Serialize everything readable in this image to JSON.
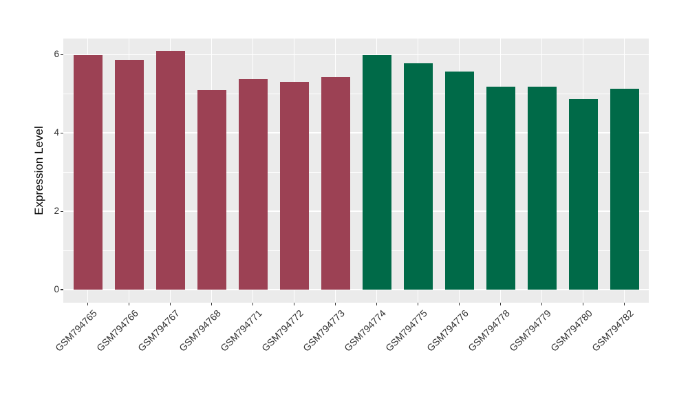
{
  "chart_data": {
    "type": "bar",
    "title": "",
    "xlabel": "",
    "ylabel": "Expression Level",
    "categories": [
      "GSM794765",
      "GSM794766",
      "GSM794767",
      "GSM794768",
      "GSM794771",
      "GSM794772",
      "GSM794773",
      "GSM794774",
      "GSM794775",
      "GSM794776",
      "GSM794778",
      "GSM794779",
      "GSM794780",
      "GSM794782"
    ],
    "values": [
      5.99,
      5.87,
      6.1,
      5.09,
      5.37,
      5.31,
      5.43,
      5.99,
      5.77,
      5.56,
      5.18,
      5.18,
      4.87,
      5.12
    ],
    "bar_colors": [
      "#9C4154",
      "#9C4154",
      "#9C4154",
      "#9C4154",
      "#9C4154",
      "#9C4154",
      "#9C4154",
      "#006A48",
      "#006A48",
      "#006A48",
      "#006A48",
      "#006A48",
      "#006A48",
      "#006A48"
    ],
    "groups": [
      {
        "name": "group-1",
        "color": "#9C4154",
        "categories_count": 7
      },
      {
        "name": "group-2",
        "color": "#006A48",
        "categories_count": 7
      }
    ],
    "y_ticks": [
      0,
      2,
      4,
      6
    ],
    "y_minor_ticks": [
      1,
      3,
      5
    ],
    "ylim": [
      -0.33,
      6.41
    ],
    "x_tick_rotation_deg": 45,
    "legend": "none",
    "grid": {
      "major": true,
      "minor": true,
      "color": "#FFFFFF"
    },
    "panel_background": "#EBEBEB",
    "figure_background": "#FFFFFF",
    "tick_color": "#333333",
    "tick_label_color": "#2F2F2F"
  }
}
